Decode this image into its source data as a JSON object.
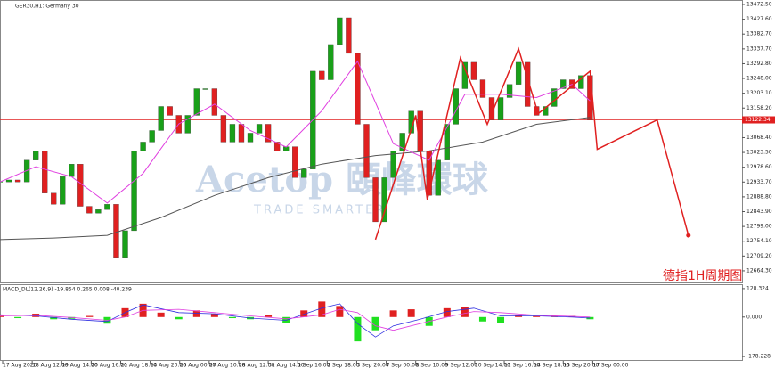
{
  "chart_data": {
    "type": "candlestick",
    "title": "GER30,H1: Germany 30",
    "annotation": "德指1H周期图",
    "watermark": "Acetop 頤峰環球",
    "watermark_sub": "TRADE SMARTER",
    "up_color": "#19a019",
    "down_color": "#e02020",
    "xlim": [
      0,
      83
    ],
    "xticks": [
      {
        "value": 0.3,
        "label": "17 Aug 2020"
      },
      {
        "value": 3.6,
        "label": "18 Aug 12:00"
      },
      {
        "value": 6.9,
        "label": "19 Aug 14:00"
      },
      {
        "value": 10.2,
        "label": "20 Aug 16:00"
      },
      {
        "value": 13.5,
        "label": "21 Aug 18:00"
      },
      {
        "value": 16.8,
        "label": "24 Aug 20:00"
      },
      {
        "value": 20.1,
        "label": "26 Aug 00:00"
      },
      {
        "value": 23.4,
        "label": "27 Aug 10:00"
      },
      {
        "value": 26.7,
        "label": "28 Aug 12:00"
      },
      {
        "value": 30.0,
        "label": "31 Aug 14:00"
      },
      {
        "value": 33.3,
        "label": "1 Sep 16:00"
      },
      {
        "value": 36.6,
        "label": "2 Sep 18:00"
      },
      {
        "value": 39.9,
        "label": "3 Sep 20:00"
      },
      {
        "value": 43.2,
        "label": "7 Sep 00:00"
      },
      {
        "value": 46.5,
        "label": "8 Sep 10:00"
      },
      {
        "value": 49.8,
        "label": "9 Sep 12:00"
      },
      {
        "value": 53.1,
        "label": "10 Sep 14:00"
      },
      {
        "value": 56.4,
        "label": "11 Sep 16:00"
      },
      {
        "value": 59.7,
        "label": "14 Sep 18:00"
      },
      {
        "value": 63.0,
        "label": "15 Sep 20:00"
      },
      {
        "value": 66.3,
        "label": "17 Sep 00:00"
      }
    ],
    "ylim": [
      12629,
      13486
    ],
    "yticks": [
      {
        "value": 13472.5,
        "label": "13472.50"
      },
      {
        "value": 13427.6,
        "label": "13427.60"
      },
      {
        "value": 13382.7,
        "label": "13382.70"
      },
      {
        "value": 13337.7,
        "label": "13337.70"
      },
      {
        "value": 13292.8,
        "label": "13292.80"
      },
      {
        "value": 13248,
        "label": "13248.00"
      },
      {
        "value": 13203.1,
        "label": "13203.10"
      },
      {
        "value": 13158.2,
        "label": "13158.20"
      },
      {
        "value": 13068.4,
        "label": "13068.40"
      },
      {
        "value": 13023.5,
        "label": "13023.50"
      },
      {
        "value": 12978.6,
        "label": "12978.60"
      },
      {
        "value": 12933.7,
        "label": "12933.70"
      },
      {
        "value": 12888.8,
        "label": "12888.80"
      },
      {
        "value": 12843.9,
        "label": "12843.90"
      },
      {
        "value": 12799,
        "label": "12799.00"
      },
      {
        "value": 12754.1,
        "label": "12754.10"
      },
      {
        "value": 12709.2,
        "label": "12709.20"
      },
      {
        "value": 12664.3,
        "label": "12664.30"
      }
    ],
    "current_price": 13122.34,
    "current_color": "#e02020",
    "values": [
      12934,
      12940,
      12934,
      13000,
      13028,
      12900,
      12866,
      12950,
      12988,
      12860,
      12839,
      12850,
      12866,
      12705,
      12786,
      13028,
      13055,
      13090,
      13163,
      13136,
      13082,
      13136,
      13217,
      13217,
      13136,
      13055,
      13109,
      13055,
      13082,
      13109,
      13055,
      13028,
      13041,
      12947,
      12973,
      13270,
      13244,
      13351,
      13432,
      13324,
      13109,
      12947,
      12813,
      12947,
      13028,
      13082,
      13149,
      13028,
      12893,
      13000,
      13109,
      13217,
      13297,
      13244,
      13190,
      13122,
      13190,
      13230,
      13297,
      13163,
      13136,
      13163,
      13217,
      13244,
      13217,
      13257,
      13122
    ],
    "long_ma": {
      "color": "#555555",
      "x": [
        0,
        6,
        12,
        18,
        24,
        30,
        36,
        42,
        48,
        54,
        60,
        66
      ],
      "values": [
        12759,
        12764,
        12772,
        12826,
        12893,
        12947,
        12988,
        13014,
        13028,
        13055,
        13109,
        13130
      ]
    },
    "short_ma": {
      "color": "#e040e0",
      "x": [
        0,
        4,
        8,
        12,
        16,
        20,
        24,
        28,
        32,
        36,
        40,
        44,
        48,
        52,
        56,
        60,
        64,
        66
      ],
      "values": [
        12934,
        12980,
        12950,
        12870,
        12960,
        13110,
        13170,
        13090,
        13040,
        13150,
        13300,
        13050,
        13000,
        13200,
        13200,
        13190,
        13230,
        13180
      ]
    },
    "zigzag": {
      "color": "#e02020",
      "x": [
        42,
        46.5,
        47.8,
        51.5,
        54.5,
        58,
        60.2,
        66,
        66.8,
        73.5,
        77
      ],
      "values": [
        12759,
        13136,
        12880,
        13311,
        13109,
        13338,
        13141,
        13270,
        13033,
        13122,
        12772
      ]
    },
    "macd": {
      "label": "MACD_DL(12,26,9) -19.854 0.265 0.008 -40.239",
      "ylim": [
        -198,
        144
      ],
      "yticks": [
        128.324,
        {
          "value": 0,
          "label": "0.000"
        },
        -178.228
      ],
      "pos_color": "#e02020",
      "neg_color": "#20e020",
      "hist_x": [
        0,
        2,
        4,
        6,
        8,
        10,
        12,
        14,
        16,
        18,
        20,
        22,
        24,
        26,
        28,
        30,
        32,
        34,
        36,
        38,
        40,
        42,
        44,
        46,
        48,
        50,
        52,
        54,
        56,
        58,
        60,
        62,
        64,
        66
      ],
      "hist": [
        10,
        -5,
        15,
        -10,
        -8,
        5,
        -30,
        40,
        60,
        20,
        -10,
        30,
        15,
        -5,
        -10,
        10,
        -25,
        30,
        70,
        50,
        -110,
        -60,
        30,
        35,
        -40,
        40,
        45,
        -20,
        -25,
        10,
        5,
        5,
        5,
        -10
      ],
      "lines_x": [
        0,
        4,
        8,
        12,
        14,
        16,
        20,
        24,
        28,
        32,
        36,
        38,
        40,
        42,
        44,
        47,
        50,
        53,
        56,
        60,
        64,
        66
      ],
      "main": {
        "color": "#3030e0",
        "values": [
          10,
          5,
          -10,
          -20,
          20,
          55,
          20,
          15,
          -5,
          -15,
          40,
          60,
          -30,
          -90,
          -40,
          -10,
          25,
          40,
          5,
          5,
          0,
          -5
        ]
      },
      "signal": {
        "color": "#e040e0",
        "values": [
          5,
          8,
          -2,
          -15,
          0,
          30,
          35,
          20,
          5,
          -8,
          10,
          35,
          20,
          -40,
          -60,
          -30,
          0,
          25,
          20,
          8,
          3,
          0
        ]
      }
    }
  }
}
